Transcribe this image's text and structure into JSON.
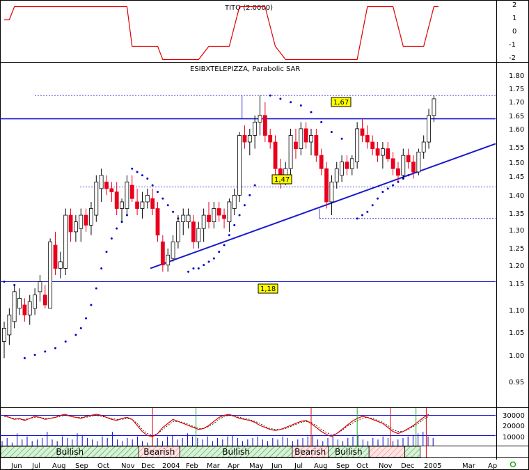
{
  "indicator_panel": {
    "title": "TITO (2.0000)",
    "y_ticks": [
      "2",
      "1",
      "0",
      "-1",
      "-2"
    ]
  },
  "price_panel": {
    "title": "ESIBXTELEPIZZA, Parabolic SAR",
    "y_ticks": [
      "1.80",
      "1.75",
      "1.70",
      "1.65",
      "1.60",
      "1.55",
      "1.50",
      "1.45",
      "1.40",
      "1.35",
      "1.30",
      "1.25",
      "1.20",
      "1.15",
      "1.10",
      "1.05",
      "1.00",
      "0.95"
    ],
    "annotations": [
      "1,67",
      "1,47",
      "1,18"
    ]
  },
  "volume_panel": {
    "y_ticks": [
      "30000",
      "20000",
      "10000"
    ]
  },
  "x_axis": {
    "labels": [
      "Jun",
      "Jul",
      "Aug",
      "Sep",
      "Oct",
      "Nov",
      "Dec",
      "2004",
      "Feb",
      "Mar",
      "Apr",
      "May",
      "Jun",
      "Jul",
      "Aug",
      "Sep",
      "Oct",
      "Nov",
      "Dec",
      "2005",
      "Mar",
      "Ap"
    ]
  },
  "trend_bands": [
    "Bullish",
    "Bearish",
    "Bullish",
    "Bearish",
    "Bullish"
  ],
  "colors": {
    "up": "#ffffff",
    "down": "#e8001c",
    "sar": "#0000cc",
    "trendline": "#1a1acc",
    "indicator": "#dd0000",
    "annotation_bg": "#ffff00",
    "band_fill": "#d6f2d6",
    "band_hatch": "#2e8b2e",
    "bear_hatch": "#e86a6a"
  },
  "chart_data": {
    "type": "candlestick",
    "title": "ESIBXTELEPIZZA, Parabolic SAR",
    "y_range": [
      0.92,
      1.83
    ],
    "x_range": [
      "2003-05",
      "2005-04"
    ],
    "horizontal_lines": [
      1.67,
      1.18
    ],
    "dashed_levels": [
      1.74,
      1.465,
      1.37
    ],
    "trendline": {
      "from": [
        "2003-12",
        1.22
      ],
      "to": [
        "2005-04",
        1.59
      ]
    },
    "annotations": [
      {
        "label": "1,67",
        "value": 1.67
      },
      {
        "label": "1,47",
        "value": 1.47
      },
      {
        "label": "1,18",
        "value": 1.18
      }
    ],
    "candles": [
      {
        "i": 0,
        "o": 1.0,
        "h": 1.06,
        "l": 0.95,
        "c": 1.04
      },
      {
        "i": 1,
        "o": 1.02,
        "h": 1.1,
        "l": 0.99,
        "c": 1.08
      },
      {
        "i": 2,
        "o": 1.06,
        "h": 1.17,
        "l": 1.04,
        "c": 1.15
      },
      {
        "i": 3,
        "o": 1.1,
        "h": 1.16,
        "l": 1.08,
        "c": 1.13
      },
      {
        "i": 4,
        "o": 1.11,
        "h": 1.13,
        "l": 1.06,
        "c": 1.08
      },
      {
        "i": 5,
        "o": 1.08,
        "h": 1.14,
        "l": 1.05,
        "c": 1.12
      },
      {
        "i": 6,
        "o": 1.1,
        "h": 1.16,
        "l": 1.08,
        "c": 1.14
      },
      {
        "i": 7,
        "o": 1.15,
        "h": 1.2,
        "l": 1.12,
        "c": 1.18
      },
      {
        "i": 8,
        "o": 1.14,
        "h": 1.17,
        "l": 1.1,
        "c": 1.11
      },
      {
        "i": 9,
        "o": 1.1,
        "h": 1.31,
        "l": 1.1,
        "c": 1.3
      },
      {
        "i": 10,
        "o": 1.29,
        "h": 1.33,
        "l": 1.2,
        "c": 1.22
      },
      {
        "i": 11,
        "o": 1.22,
        "h": 1.27,
        "l": 1.19,
        "c": 1.24
      },
      {
        "i": 12,
        "o": 1.22,
        "h": 1.4,
        "l": 1.2,
        "c": 1.38
      },
      {
        "i": 13,
        "o": 1.38,
        "h": 1.4,
        "l": 1.3,
        "c": 1.33
      },
      {
        "i": 14,
        "o": 1.33,
        "h": 1.38,
        "l": 1.3,
        "c": 1.36
      },
      {
        "i": 15,
        "o": 1.34,
        "h": 1.4,
        "l": 1.3,
        "c": 1.38
      },
      {
        "i": 16,
        "o": 1.38,
        "h": 1.4,
        "l": 1.33,
        "c": 1.35
      },
      {
        "i": 17,
        "o": 1.35,
        "h": 1.42,
        "l": 1.32,
        "c": 1.4
      },
      {
        "i": 18,
        "o": 1.38,
        "h": 1.5,
        "l": 1.36,
        "c": 1.48
      },
      {
        "i": 19,
        "o": 1.46,
        "h": 1.52,
        "l": 1.42,
        "c": 1.5
      },
      {
        "i": 20,
        "o": 1.48,
        "h": 1.5,
        "l": 1.44,
        "c": 1.46
      },
      {
        "i": 21,
        "o": 1.46,
        "h": 1.48,
        "l": 1.42,
        "c": 1.45
      },
      {
        "i": 22,
        "o": 1.45,
        "h": 1.48,
        "l": 1.38,
        "c": 1.4
      },
      {
        "i": 23,
        "o": 1.4,
        "h": 1.43,
        "l": 1.36,
        "c": 1.42
      },
      {
        "i": 24,
        "o": 1.4,
        "h": 1.5,
        "l": 1.38,
        "c": 1.48
      },
      {
        "i": 25,
        "o": 1.47,
        "h": 1.5,
        "l": 1.42,
        "c": 1.43
      },
      {
        "i": 26,
        "o": 1.42,
        "h": 1.46,
        "l": 1.38,
        "c": 1.4
      },
      {
        "i": 27,
        "o": 1.4,
        "h": 1.45,
        "l": 1.37,
        "c": 1.42
      },
      {
        "i": 28,
        "o": 1.42,
        "h": 1.46,
        "l": 1.4,
        "c": 1.44
      },
      {
        "i": 29,
        "o": 1.43,
        "h": 1.46,
        "l": 1.38,
        "c": 1.4
      },
      {
        "i": 30,
        "o": 1.4,
        "h": 1.42,
        "l": 1.3,
        "c": 1.32
      },
      {
        "i": 31,
        "o": 1.3,
        "h": 1.32,
        "l": 1.21,
        "c": 1.23
      },
      {
        "i": 32,
        "o": 1.23,
        "h": 1.28,
        "l": 1.21,
        "c": 1.26
      },
      {
        "i": 33,
        "o": 1.25,
        "h": 1.32,
        "l": 1.24,
        "c": 1.3
      },
      {
        "i": 34,
        "o": 1.3,
        "h": 1.38,
        "l": 1.28,
        "c": 1.36
      },
      {
        "i": 35,
        "o": 1.36,
        "h": 1.4,
        "l": 1.32,
        "c": 1.38
      },
      {
        "i": 36,
        "o": 1.36,
        "h": 1.4,
        "l": 1.34,
        "c": 1.38
      },
      {
        "i": 37,
        "o": 1.36,
        "h": 1.38,
        "l": 1.28,
        "c": 1.3
      },
      {
        "i": 38,
        "o": 1.3,
        "h": 1.36,
        "l": 1.28,
        "c": 1.34
      },
      {
        "i": 39,
        "o": 1.34,
        "h": 1.4,
        "l": 1.3,
        "c": 1.38
      },
      {
        "i": 40,
        "o": 1.38,
        "h": 1.42,
        "l": 1.34,
        "c": 1.36
      },
      {
        "i": 41,
        "o": 1.36,
        "h": 1.42,
        "l": 1.34,
        "c": 1.4
      },
      {
        "i": 42,
        "o": 1.4,
        "h": 1.42,
        "l": 1.36,
        "c": 1.38
      },
      {
        "i": 43,
        "o": 1.38,
        "h": 1.4,
        "l": 1.34,
        "c": 1.37
      },
      {
        "i": 44,
        "o": 1.36,
        "h": 1.43,
        "l": 1.33,
        "c": 1.42
      },
      {
        "i": 45,
        "o": 1.4,
        "h": 1.46,
        "l": 1.38,
        "c": 1.44
      },
      {
        "i": 46,
        "o": 1.44,
        "h": 1.63,
        "l": 1.42,
        "c": 1.62
      },
      {
        "i": 47,
        "o": 1.62,
        "h": 1.65,
        "l": 1.58,
        "c": 1.6
      },
      {
        "i": 48,
        "o": 1.6,
        "h": 1.64,
        "l": 1.56,
        "c": 1.62
      },
      {
        "i": 49,
        "o": 1.62,
        "h": 1.68,
        "l": 1.58,
        "c": 1.66
      },
      {
        "i": 50,
        "o": 1.66,
        "h": 1.74,
        "l": 1.62,
        "c": 1.68
      },
      {
        "i": 51,
        "o": 1.68,
        "h": 1.72,
        "l": 1.6,
        "c": 1.62
      },
      {
        "i": 52,
        "o": 1.62,
        "h": 1.64,
        "l": 1.58,
        "c": 1.6
      },
      {
        "i": 53,
        "o": 1.6,
        "h": 1.62,
        "l": 1.5,
        "c": 1.52
      },
      {
        "i": 54,
        "o": 1.52,
        "h": 1.55,
        "l": 1.46,
        "c": 1.48
      },
      {
        "i": 55,
        "o": 1.48,
        "h": 1.54,
        "l": 1.47,
        "c": 1.52
      },
      {
        "i": 56,
        "o": 1.52,
        "h": 1.64,
        "l": 1.5,
        "c": 1.62
      },
      {
        "i": 57,
        "o": 1.6,
        "h": 1.64,
        "l": 1.55,
        "c": 1.58
      },
      {
        "i": 58,
        "o": 1.58,
        "h": 1.66,
        "l": 1.56,
        "c": 1.64
      },
      {
        "i": 59,
        "o": 1.64,
        "h": 1.66,
        "l": 1.58,
        "c": 1.6
      },
      {
        "i": 60,
        "o": 1.6,
        "h": 1.64,
        "l": 1.56,
        "c": 1.62
      },
      {
        "i": 61,
        "o": 1.62,
        "h": 1.64,
        "l": 1.54,
        "c": 1.56
      },
      {
        "i": 62,
        "o": 1.56,
        "h": 1.58,
        "l": 1.5,
        "c": 1.52
      },
      {
        "i": 63,
        "o": 1.52,
        "h": 1.54,
        "l": 1.4,
        "c": 1.42
      },
      {
        "i": 64,
        "o": 1.42,
        "h": 1.5,
        "l": 1.38,
        "c": 1.48
      },
      {
        "i": 65,
        "o": 1.48,
        "h": 1.54,
        "l": 1.46,
        "c": 1.52
      },
      {
        "i": 66,
        "o": 1.5,
        "h": 1.56,
        "l": 1.48,
        "c": 1.54
      },
      {
        "i": 67,
        "o": 1.54,
        "h": 1.56,
        "l": 1.5,
        "c": 1.52
      },
      {
        "i": 68,
        "o": 1.52,
        "h": 1.56,
        "l": 1.5,
        "c": 1.55
      },
      {
        "i": 69,
        "o": 1.54,
        "h": 1.66,
        "l": 1.52,
        "c": 1.64
      },
      {
        "i": 70,
        "o": 1.64,
        "h": 1.67,
        "l": 1.6,
        "c": 1.62
      },
      {
        "i": 71,
        "o": 1.62,
        "h": 1.65,
        "l": 1.58,
        "c": 1.6
      },
      {
        "i": 72,
        "o": 1.6,
        "h": 1.62,
        "l": 1.56,
        "c": 1.58
      },
      {
        "i": 73,
        "o": 1.58,
        "h": 1.6,
        "l": 1.54,
        "c": 1.56
      },
      {
        "i": 74,
        "o": 1.56,
        "h": 1.6,
        "l": 1.52,
        "c": 1.58
      },
      {
        "i": 75,
        "o": 1.58,
        "h": 1.6,
        "l": 1.54,
        "c": 1.55
      },
      {
        "i": 76,
        "o": 1.55,
        "h": 1.57,
        "l": 1.5,
        "c": 1.52
      },
      {
        "i": 77,
        "o": 1.52,
        "h": 1.54,
        "l": 1.48,
        "c": 1.5
      },
      {
        "i": 78,
        "o": 1.5,
        "h": 1.58,
        "l": 1.49,
        "c": 1.56
      },
      {
        "i": 79,
        "o": 1.56,
        "h": 1.58,
        "l": 1.52,
        "c": 1.54
      },
      {
        "i": 80,
        "o": 1.54,
        "h": 1.56,
        "l": 1.49,
        "c": 1.51
      },
      {
        "i": 81,
        "o": 1.51,
        "h": 1.58,
        "l": 1.5,
        "c": 1.57
      },
      {
        "i": 82,
        "o": 1.57,
        "h": 1.62,
        "l": 1.55,
        "c": 1.6
      },
      {
        "i": 83,
        "o": 1.6,
        "h": 1.7,
        "l": 1.58,
        "c": 1.68
      },
      {
        "i": 84,
        "o": 1.68,
        "h": 1.74,
        "l": 1.66,
        "c": 1.73
      }
    ],
    "sar": [
      {
        "i": 0,
        "v": 1.18
      },
      {
        "i": 2,
        "v": 1.17
      },
      {
        "i": 4,
        "v": 0.95
      },
      {
        "i": 6,
        "v": 0.96
      },
      {
        "i": 8,
        "v": 0.97
      },
      {
        "i": 10,
        "v": 0.98
      },
      {
        "i": 12,
        "v": 1.0
      },
      {
        "i": 14,
        "v": 1.02
      },
      {
        "i": 15,
        "v": 1.04
      },
      {
        "i": 16,
        "v": 1.07
      },
      {
        "i": 17,
        "v": 1.11
      },
      {
        "i": 18,
        "v": 1.16
      },
      {
        "i": 19,
        "v": 1.22
      },
      {
        "i": 20,
        "v": 1.27
      },
      {
        "i": 21,
        "v": 1.31
      },
      {
        "i": 22,
        "v": 1.34
      },
      {
        "i": 23,
        "v": 1.36
      },
      {
        "i": 24,
        "v": 1.38
      },
      {
        "i": 25,
        "v": 1.52
      },
      {
        "i": 26,
        "v": 1.51
      },
      {
        "i": 27,
        "v": 1.5
      },
      {
        "i": 28,
        "v": 1.49
      },
      {
        "i": 29,
        "v": 1.47
      },
      {
        "i": 30,
        "v": 1.45
      },
      {
        "i": 31,
        "v": 1.43
      },
      {
        "i": 32,
        "v": 1.41
      },
      {
        "i": 33,
        "v": 1.39
      },
      {
        "i": 34,
        "v": 1.37
      },
      {
        "i": 36,
        "v": 1.21
      },
      {
        "i": 37,
        "v": 1.22
      },
      {
        "i": 38,
        "v": 1.22
      },
      {
        "i": 39,
        "v": 1.23
      },
      {
        "i": 40,
        "v": 1.24
      },
      {
        "i": 41,
        "v": 1.25
      },
      {
        "i": 42,
        "v": 1.27
      },
      {
        "i": 43,
        "v": 1.29
      },
      {
        "i": 44,
        "v": 1.32
      },
      {
        "i": 45,
        "v": 1.35
      },
      {
        "i": 46,
        "v": 1.38
      },
      {
        "i": 47,
        "v": 1.41
      },
      {
        "i": 48,
        "v": 1.44
      },
      {
        "i": 49,
        "v": 1.47
      },
      {
        "i": 52,
        "v": 1.74
      },
      {
        "i": 54,
        "v": 1.73
      },
      {
        "i": 56,
        "v": 1.72
      },
      {
        "i": 58,
        "v": 1.71
      },
      {
        "i": 60,
        "v": 1.69
      },
      {
        "i": 62,
        "v": 1.66
      },
      {
        "i": 64,
        "v": 1.63
      },
      {
        "i": 66,
        "v": 1.61
      },
      {
        "i": 69,
        "v": 1.37
      },
      {
        "i": 70,
        "v": 1.38
      },
      {
        "i": 71,
        "v": 1.39
      },
      {
        "i": 72,
        "v": 1.41
      },
      {
        "i": 73,
        "v": 1.43
      },
      {
        "i": 74,
        "v": 1.45
      },
      {
        "i": 75,
        "v": 1.46
      },
      {
        "i": 76,
        "v": 1.47
      },
      {
        "i": 77,
        "v": 1.48
      },
      {
        "i": 78,
        "v": 1.49
      },
      {
        "i": 79,
        "v": 1.5
      },
      {
        "i": 80,
        "v": 1.51
      },
      {
        "i": 81,
        "v": 1.52
      }
    ],
    "indicator": {
      "name": "TITO (2.0000)",
      "y_range": [
        -2.5,
        2.5
      ],
      "segments": [
        {
          "i": 0,
          "v": 1
        },
        {
          "i": 1,
          "v": 1
        },
        {
          "i": 2,
          "v": 2
        },
        {
          "i": 24,
          "v": 2
        },
        {
          "i": 25,
          "v": -1
        },
        {
          "i": 30,
          "v": -1
        },
        {
          "i": 31,
          "v": -2
        },
        {
          "i": 38,
          "v": -2
        },
        {
          "i": 40,
          "v": -1
        },
        {
          "i": 44,
          "v": -1
        },
        {
          "i": 46,
          "v": 2
        },
        {
          "i": 51,
          "v": 2
        },
        {
          "i": 53,
          "v": -1
        },
        {
          "i": 55,
          "v": -2
        },
        {
          "i": 69,
          "v": -2
        },
        {
          "i": 71,
          "v": 2
        },
        {
          "i": 76,
          "v": 2
        },
        {
          "i": 78,
          "v": -1
        },
        {
          "i": 82,
          "v": -1
        },
        {
          "i": 84,
          "v": 2
        },
        {
          "i": 87,
          "v": 2
        }
      ]
    },
    "volume_panel": {
      "oscillator": [
        30,
        28,
        26,
        27,
        25,
        27,
        29,
        28,
        26,
        27,
        28,
        30,
        31,
        29,
        28,
        27,
        29,
        30,
        31,
        30,
        28,
        26,
        25,
        27,
        28,
        26,
        20,
        14,
        10,
        9,
        12,
        18,
        22,
        26,
        24,
        22,
        20,
        18,
        16,
        17,
        20,
        24,
        28,
        30,
        31,
        29,
        27,
        26,
        25,
        23,
        20,
        18,
        16,
        15,
        16,
        18,
        20,
        22,
        24,
        25,
        22,
        18,
        14,
        11,
        9,
        12,
        16,
        20,
        24,
        27,
        29,
        28,
        26,
        24,
        22,
        18,
        14,
        12,
        14,
        17,
        20,
        24,
        28,
        31
      ],
      "signal": [
        29,
        28,
        27,
        26,
        26,
        27,
        28,
        28,
        27,
        27,
        28,
        29,
        30,
        29,
        28,
        28,
        28,
        29,
        30,
        29,
        28,
        27,
        26,
        26,
        27,
        26,
        22,
        16,
        12,
        10,
        12,
        16,
        20,
        24,
        24,
        23,
        21,
        19,
        17,
        17,
        19,
        22,
        26,
        29,
        30,
        29,
        28,
        27,
        26,
        24,
        22,
        19,
        17,
        16,
        16,
        17,
        19,
        21,
        23,
        24,
        23,
        20,
        16,
        13,
        11,
        12,
        15,
        19,
        22,
        25,
        27,
        28,
        27,
        25,
        23,
        20,
        16,
        14,
        14,
        16,
        19,
        22,
        26,
        29
      ],
      "volumes": [
        3,
        5,
        2,
        8,
        4,
        6,
        3,
        4,
        5,
        9,
        4,
        3,
        6,
        5,
        4,
        8,
        7,
        5,
        4,
        3,
        6,
        5,
        9,
        4,
        3,
        5,
        4,
        6,
        3,
        2,
        4,
        5,
        3,
        6,
        7,
        4,
        5,
        8,
        6,
        5,
        4,
        6,
        3,
        5,
        4,
        6,
        7,
        5,
        3,
        4,
        5,
        6,
        4,
        3,
        5,
        4,
        6,
        5,
        3,
        4,
        5,
        6,
        7,
        4,
        3,
        5,
        6,
        4,
        3,
        5,
        6,
        7,
        4,
        3,
        5,
        4,
        6,
        5,
        3,
        4,
        5,
        6,
        7,
        8,
        9,
        6,
        5
      ],
      "y_range": [
        0,
        34000
      ]
    },
    "trend_bands": [
      {
        "label": "Bullish",
        "from": 0,
        "to": 27,
        "kind": "bull"
      },
      {
        "label": "Bearish",
        "from": 27,
        "to": 35,
        "kind": "bear"
      },
      {
        "label": "Bullish",
        "from": 35,
        "to": 57,
        "kind": "bull"
      },
      {
        "label": "Bearish",
        "from": 57,
        "to": 64,
        "kind": "bear"
      },
      {
        "label": "Bullish",
        "from": 64,
        "to": 72,
        "kind": "bull"
      },
      {
        "label": "",
        "from": 72,
        "to": 79,
        "kind": "bear"
      },
      {
        "label": "",
        "from": 79,
        "to": 82,
        "kind": "bull"
      }
    ]
  }
}
